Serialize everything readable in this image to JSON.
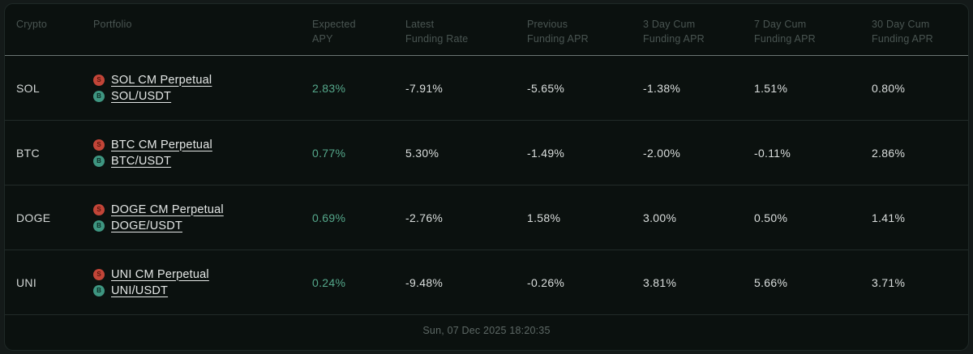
{
  "colors": {
    "accent_green": "#55a88b",
    "perp_badge_red": "#c24538",
    "spot_badge_teal": "#3e9681",
    "card_background": "#0b110f"
  },
  "table": {
    "headers": [
      "Crypto",
      "Portfolio",
      "Expected\nAPY",
      "Latest\nFunding Rate",
      "Previous\nFunding APR",
      "3 Day Cum\nFunding APR",
      "7 Day Cum\nFunding APR",
      "30 Day Cum\nFunding APR"
    ],
    "rows": [
      {
        "crypto": "SOL",
        "perp": {
          "icon_letter": "S",
          "label": "SOL CM Perpetual"
        },
        "spot": {
          "icon_letter": "B",
          "label": "SOL/USDT"
        },
        "expected_apy": "2.83%",
        "latest_funding_rate": "-7.91%",
        "previous_funding_apr": "-5.65%",
        "cum_3d": "-1.38%",
        "cum_7d": "1.51%",
        "cum_30d": "0.80%"
      },
      {
        "crypto": "BTC",
        "perp": {
          "icon_letter": "S",
          "label": "BTC CM Perpetual"
        },
        "spot": {
          "icon_letter": "B",
          "label": "BTC/USDT"
        },
        "expected_apy": "0.77%",
        "latest_funding_rate": "5.30%",
        "previous_funding_apr": "-1.49%",
        "cum_3d": "-2.00%",
        "cum_7d": "-0.11%",
        "cum_30d": "2.86%"
      },
      {
        "crypto": "DOGE",
        "perp": {
          "icon_letter": "S",
          "label": "DOGE CM Perpetual"
        },
        "spot": {
          "icon_letter": "B",
          "label": "DOGE/USDT"
        },
        "expected_apy": "0.69%",
        "latest_funding_rate": "-2.76%",
        "previous_funding_apr": "1.58%",
        "cum_3d": "3.00%",
        "cum_7d": "0.50%",
        "cum_30d": "1.41%"
      },
      {
        "crypto": "UNI",
        "perp": {
          "icon_letter": "S",
          "label": "UNI CM Perpetual"
        },
        "spot": {
          "icon_letter": "B",
          "label": "UNI/USDT"
        },
        "expected_apy": "0.24%",
        "latest_funding_rate": "-9.48%",
        "previous_funding_apr": "-0.26%",
        "cum_3d": "3.81%",
        "cum_7d": "5.66%",
        "cum_30d": "3.71%"
      }
    ]
  },
  "footer": {
    "timestamp": "Sun, 07 Dec 2025 18:20:35"
  }
}
